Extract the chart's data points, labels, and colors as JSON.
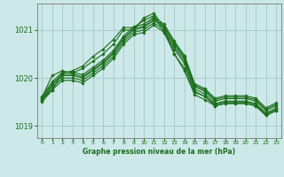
{
  "background_color": "#cce8e8",
  "grid_color": "#aacccc",
  "line_color": "#1a6e1a",
  "marker_color": "#1a6e1a",
  "ylim": [
    1018.75,
    1021.55
  ],
  "xlim": [
    -0.5,
    23.5
  ],
  "yticks": [
    1019,
    1020,
    1021
  ],
  "xticks": [
    0,
    1,
    2,
    3,
    4,
    5,
    6,
    7,
    8,
    9,
    10,
    11,
    12,
    13,
    14,
    15,
    16,
    17,
    18,
    19,
    20,
    21,
    22,
    23
  ],
  "xlabel": "Graphe pression niveau de la mer (hPa)",
  "series": [
    [
      1019.55,
      1019.85,
      1020.05,
      1020.05,
      1020.0,
      1020.15,
      1020.3,
      1020.5,
      1020.8,
      1021.0,
      1021.05,
      1021.2,
      1021.05,
      1020.7,
      1020.4,
      1019.82,
      1019.72,
      1019.52,
      1019.57,
      1019.57,
      1019.57,
      1019.52,
      1019.32,
      1019.42
    ],
    [
      1019.58,
      1019.88,
      1020.08,
      1020.08,
      1020.03,
      1020.18,
      1020.33,
      1020.53,
      1020.83,
      1021.03,
      1021.08,
      1021.23,
      1021.08,
      1020.73,
      1020.43,
      1019.85,
      1019.75,
      1019.55,
      1019.6,
      1019.6,
      1019.6,
      1019.55,
      1019.35,
      1019.45
    ],
    [
      1019.62,
      1019.92,
      1020.12,
      1020.12,
      1020.07,
      1020.22,
      1020.37,
      1020.57,
      1020.87,
      1021.07,
      1021.12,
      1021.27,
      1021.12,
      1020.77,
      1020.47,
      1019.88,
      1019.78,
      1019.58,
      1019.63,
      1019.63,
      1019.63,
      1019.58,
      1019.38,
      1019.48
    ],
    [
      1019.55,
      1019.8,
      1020.0,
      1020.0,
      1019.95,
      1020.1,
      1020.25,
      1020.45,
      1020.75,
      1020.95,
      1021.0,
      1021.15,
      1021.0,
      1020.65,
      1020.35,
      1019.77,
      1019.67,
      1019.47,
      1019.52,
      1019.52,
      1019.52,
      1019.47,
      1019.27,
      1019.37
    ],
    [
      1019.5,
      1019.75,
      1019.95,
      1019.95,
      1019.9,
      1020.05,
      1020.2,
      1020.4,
      1020.7,
      1020.9,
      1020.95,
      1021.1,
      1020.95,
      1020.6,
      1020.3,
      1019.72,
      1019.62,
      1019.42,
      1019.47,
      1019.47,
      1019.47,
      1019.42,
      1019.22,
      1019.32
    ],
    [
      1019.6,
      1020.05,
      1020.15,
      1020.1,
      1020.2,
      1020.35,
      1020.5,
      1020.7,
      1021.0,
      1021.0,
      1021.25,
      1021.35,
      1021.05,
      1020.5,
      1020.15,
      1019.65,
      1019.55,
      1019.42,
      1019.47,
      1019.47,
      1019.47,
      1019.42,
      1019.22,
      1019.32
    ],
    [
      1019.55,
      1019.75,
      1020.1,
      1020.15,
      1020.25,
      1020.45,
      1020.6,
      1020.8,
      1021.05,
      1021.05,
      1021.2,
      1021.3,
      1020.95,
      1020.5,
      1020.2,
      1019.7,
      1019.62,
      1019.45,
      1019.5,
      1019.5,
      1019.5,
      1019.45,
      1019.25,
      1019.35
    ]
  ]
}
